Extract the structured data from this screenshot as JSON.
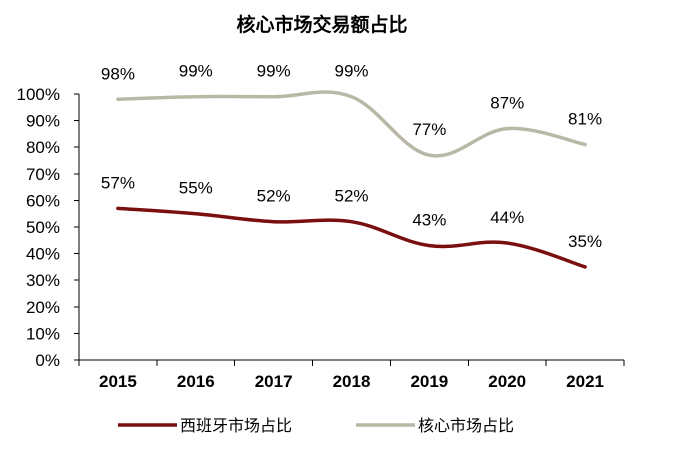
{
  "chart_data": {
    "type": "line",
    "title": "核心市场交易额占比",
    "categories": [
      "2015",
      "2016",
      "2017",
      "2018",
      "2019",
      "2020",
      "2021"
    ],
    "ylim": [
      0,
      100
    ],
    "ytick_labels": [
      "0%",
      "10%",
      "20%",
      "30%",
      "40%",
      "50%",
      "60%",
      "70%",
      "80%",
      "90%",
      "100%"
    ],
    "grid": false,
    "legend_position": "bottom",
    "series": [
      {
        "name": "西班牙市场占比",
        "color": "#7a0f10",
        "values": [
          57,
          55,
          52,
          52,
          43,
          44,
          35
        ],
        "labels": [
          "57%",
          "55%",
          "52%",
          "52%",
          "43%",
          "44%",
          "35%"
        ]
      },
      {
        "name": "核心市场占比",
        "color": "#b9b8a6",
        "values": [
          98,
          99,
          99,
          99,
          77,
          87,
          81
        ],
        "labels": [
          "98%",
          "99%",
          "99%",
          "99%",
          "77%",
          "87%",
          "81%"
        ]
      }
    ]
  }
}
